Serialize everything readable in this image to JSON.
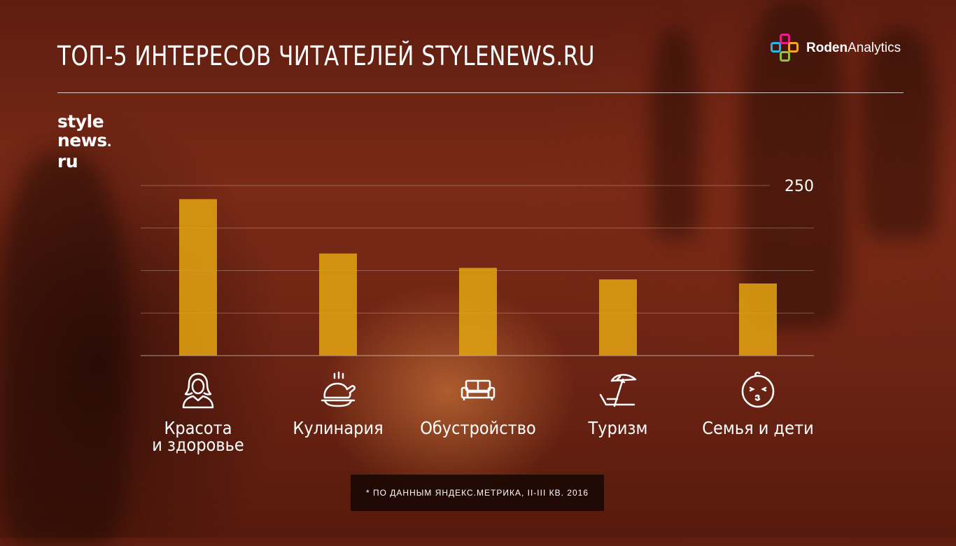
{
  "title": "ТОП-5 ИНТЕРЕСОВ ЧИТАТЕЛЕЙ STYLENEWS.RU",
  "brand": {
    "name_bold": "Roden",
    "name_regular": "Analytics",
    "colors": [
      "#e91e8c",
      "#f5a623",
      "#26b5e8",
      "#8cc63f"
    ]
  },
  "logo": {
    "line1": "style",
    "line2": "news",
    "line3": "ru"
  },
  "chart_data": {
    "type": "bar",
    "categories": [
      "Красота и здоровье",
      "Кулинария",
      "Обустройство",
      "Туризм",
      "Семья и дети"
    ],
    "category_lines": [
      [
        "Красота",
        "и здоровье"
      ],
      [
        "Кулинария"
      ],
      [
        "Обустройство"
      ],
      [
        "Туризм"
      ],
      [
        "Семья и дети"
      ]
    ],
    "icons": [
      "woman-icon",
      "roast-chicken-icon",
      "sofa-icon",
      "beach-umbrella-icon",
      "child-face-icon"
    ],
    "values": [
      230,
      150,
      129,
      112,
      106
    ],
    "ylim": [
      0,
      250
    ],
    "yticks": [
      0,
      62.5,
      125,
      187.5,
      250
    ],
    "ytick_labels_shown": [
      "250"
    ],
    "grid": true,
    "bar_color": "#e0a012",
    "title": "",
    "xlabel": "",
    "ylabel": ""
  },
  "footnote": "* ПО ДАННЫМ ЯНДЕКС.МЕТРИКА, II-III КВ. 2016"
}
